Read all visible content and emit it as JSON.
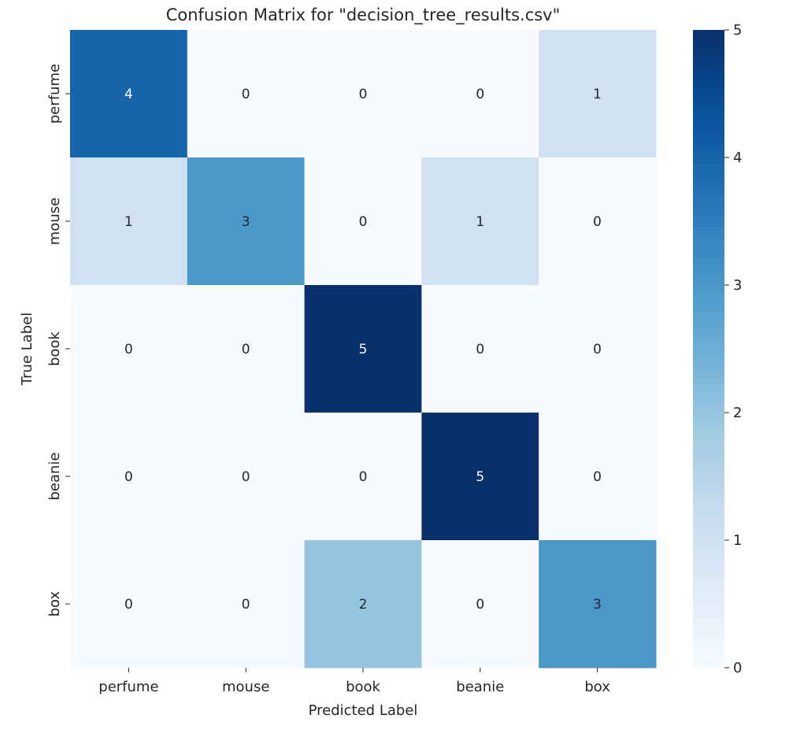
{
  "chart_data": {
    "type": "heatmap",
    "title": "Confusion Matrix for \"decision_tree_results.csv\"",
    "xlabel": "Predicted Label",
    "ylabel": "True Label",
    "x_categories": [
      "perfume",
      "mouse",
      "book",
      "beanie",
      "box"
    ],
    "y_categories": [
      "perfume",
      "mouse",
      "book",
      "beanie",
      "box"
    ],
    "values": [
      [
        4,
        0,
        0,
        0,
        1
      ],
      [
        1,
        3,
        0,
        1,
        0
      ],
      [
        0,
        0,
        5,
        0,
        0
      ],
      [
        0,
        0,
        0,
        5,
        0
      ],
      [
        0,
        0,
        2,
        0,
        3
      ]
    ],
    "colormap": "Blues",
    "color_range": [
      0,
      5
    ],
    "colorbar_ticks": [
      "0",
      "1",
      "2",
      "3",
      "4",
      "5"
    ],
    "grid": false,
    "annotations": true
  }
}
